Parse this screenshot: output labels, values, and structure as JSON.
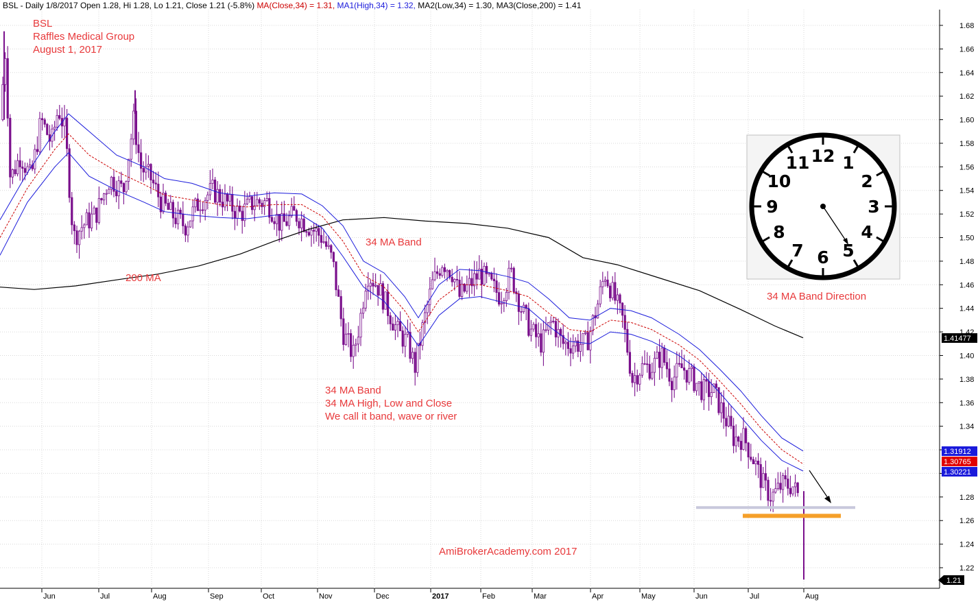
{
  "header": {
    "prefix": "BSL - Daily 1/8/2017 Open 1.28, Hi 1.28, Lo 1.21, Close 1.21 (-5.8%) ",
    "ma_close": "MA(Close,34) = 1.31,",
    "ma_high": " MA1(High,34) = 1.32,",
    "ma_low": " MA2(Low,34) = 1.30,",
    "ma_200": " MA3(Close,200) = 1.41"
  },
  "annotations": {
    "ticker": "BSL",
    "company": "Raffles Medical Group",
    "date": "August 1, 2017",
    "ma200": "200 MA",
    "band_top": "34 MA Band",
    "band_line1": "34 MA Band",
    "band_line2": "34 MA High, Low and Close",
    "band_line3": "We call it band, wave or river",
    "watermark": "AmiBrokerAcademy.com  2017",
    "clock_caption": "34 MA Band Direction"
  },
  "price_labels": {
    "ma200": "1.41477",
    "ma_high": "1.31912",
    "ma_close": "1.30765",
    "ma_low": "1.30221",
    "last": "1.21"
  },
  "clock": {
    "numbers": [
      "12",
      "1",
      "2",
      "3",
      "4",
      "5",
      "6",
      "7",
      "8",
      "9",
      "10",
      "11"
    ]
  },
  "colors": {
    "candle": "#7a0f8c",
    "ma_band": "#1a1adb",
    "ma_close": "#cc0000",
    "ma200": "#000000",
    "annotation": "#e8393b",
    "support_orange": "#f5a02a",
    "support_gray": "#c8c8dc"
  },
  "chart_data": {
    "type": "candlestick",
    "y_ticks": [
      "1.22",
      "1.24",
      "1.26",
      "1.28",
      "1.30",
      "1.32",
      "1.34",
      "1.36",
      "1.38",
      "1.40",
      "1.42",
      "1.44",
      "1.46",
      "1.48",
      "1.50",
      "1.52",
      "1.54",
      "1.56",
      "1.58",
      "1.60",
      "1.62",
      "1.64",
      "1.66",
      "1.68"
    ],
    "ylim": [
      1.205,
      1.695
    ],
    "x_ticks": [
      "Jun",
      "Jul",
      "Aug",
      "Sep",
      "Oct",
      "Nov",
      "Dec",
      "2017",
      "Feb",
      "Mar",
      "Apr",
      "May",
      "Jun",
      "Jul",
      "Aug"
    ],
    "ma200": [
      [
        0,
        1.458
      ],
      [
        50,
        1.456
      ],
      [
        110,
        1.459
      ],
      [
        180,
        1.465
      ],
      [
        230,
        1.469
      ],
      [
        290,
        1.476
      ],
      [
        350,
        1.486
      ],
      [
        400,
        1.497
      ],
      [
        450,
        1.507
      ],
      [
        500,
        1.515
      ],
      [
        560,
        1.517
      ],
      [
        620,
        1.514
      ],
      [
        680,
        1.512
      ],
      [
        740,
        1.508
      ],
      [
        800,
        1.5
      ],
      [
        850,
        1.483
      ],
      [
        900,
        1.477
      ],
      [
        960,
        1.466
      ],
      [
        1020,
        1.455
      ],
      [
        1080,
        1.439
      ],
      [
        1130,
        1.425
      ],
      [
        1171,
        1.415
      ]
    ],
    "ma_high": [
      [
        0,
        1.515
      ],
      [
        40,
        1.555
      ],
      [
        80,
        1.59
      ],
      [
        100,
        1.605
      ],
      [
        130,
        1.59
      ],
      [
        170,
        1.57
      ],
      [
        210,
        1.56
      ],
      [
        240,
        1.55
      ],
      [
        280,
        1.546
      ],
      [
        320,
        1.538
      ],
      [
        360,
        1.535
      ],
      [
        400,
        1.538
      ],
      [
        440,
        1.537
      ],
      [
        470,
        1.527
      ],
      [
        500,
        1.51
      ],
      [
        530,
        1.48
      ],
      [
        560,
        1.47
      ],
      [
        590,
        1.45
      ],
      [
        610,
        1.432
      ],
      [
        640,
        1.46
      ],
      [
        670,
        1.473
      ],
      [
        700,
        1.472
      ],
      [
        740,
        1.467
      ],
      [
        770,
        1.462
      ],
      [
        800,
        1.448
      ],
      [
        830,
        1.432
      ],
      [
        860,
        1.43
      ],
      [
        890,
        1.44
      ],
      [
        920,
        1.438
      ],
      [
        950,
        1.432
      ],
      [
        990,
        1.418
      ],
      [
        1020,
        1.405
      ],
      [
        1050,
        1.388
      ],
      [
        1080,
        1.37
      ],
      [
        1110,
        1.349
      ],
      [
        1140,
        1.33
      ],
      [
        1171,
        1.319
      ]
    ],
    "ma_close": [
      [
        0,
        1.5
      ],
      [
        40,
        1.542
      ],
      [
        80,
        1.575
      ],
      [
        100,
        1.588
      ],
      [
        130,
        1.57
      ],
      [
        170,
        1.556
      ],
      [
        210,
        1.545
      ],
      [
        240,
        1.536
      ],
      [
        280,
        1.532
      ],
      [
        320,
        1.528
      ],
      [
        360,
        1.526
      ],
      [
        400,
        1.528
      ],
      [
        440,
        1.528
      ],
      [
        470,
        1.518
      ],
      [
        500,
        1.497
      ],
      [
        530,
        1.468
      ],
      [
        560,
        1.458
      ],
      [
        590,
        1.438
      ],
      [
        610,
        1.42
      ],
      [
        640,
        1.447
      ],
      [
        670,
        1.46
      ],
      [
        700,
        1.46
      ],
      [
        740,
        1.455
      ],
      [
        770,
        1.45
      ],
      [
        800,
        1.436
      ],
      [
        830,
        1.422
      ],
      [
        860,
        1.42
      ],
      [
        890,
        1.43
      ],
      [
        920,
        1.428
      ],
      [
        950,
        1.422
      ],
      [
        990,
        1.409
      ],
      [
        1020,
        1.396
      ],
      [
        1050,
        1.378
      ],
      [
        1080,
        1.359
      ],
      [
        1110,
        1.338
      ],
      [
        1140,
        1.32
      ],
      [
        1171,
        1.308
      ]
    ],
    "ma_low": [
      [
        0,
        1.485
      ],
      [
        40,
        1.53
      ],
      [
        80,
        1.56
      ],
      [
        100,
        1.572
      ],
      [
        130,
        1.552
      ],
      [
        170,
        1.54
      ],
      [
        210,
        1.53
      ],
      [
        240,
        1.522
      ],
      [
        280,
        1.519
      ],
      [
        320,
        1.517
      ],
      [
        360,
        1.516
      ],
      [
        400,
        1.519
      ],
      [
        440,
        1.519
      ],
      [
        470,
        1.508
      ],
      [
        500,
        1.484
      ],
      [
        530,
        1.458
      ],
      [
        560,
        1.446
      ],
      [
        590,
        1.425
      ],
      [
        610,
        1.408
      ],
      [
        640,
        1.434
      ],
      [
        670,
        1.448
      ],
      [
        700,
        1.45
      ],
      [
        740,
        1.444
      ],
      [
        770,
        1.44
      ],
      [
        800,
        1.425
      ],
      [
        830,
        1.412
      ],
      [
        860,
        1.41
      ],
      [
        890,
        1.42
      ],
      [
        920,
        1.418
      ],
      [
        950,
        1.412
      ],
      [
        990,
        1.4
      ],
      [
        1020,
        1.387
      ],
      [
        1050,
        1.368
      ],
      [
        1080,
        1.348
      ],
      [
        1110,
        1.328
      ],
      [
        1140,
        1.311
      ],
      [
        1171,
        1.302
      ]
    ],
    "candles_keypoints": [
      [
        0,
        1.6
      ],
      [
        8,
        1.66
      ],
      [
        15,
        1.55
      ],
      [
        30,
        1.57
      ],
      [
        45,
        1.55
      ],
      [
        60,
        1.6
      ],
      [
        75,
        1.58
      ],
      [
        85,
        1.61
      ],
      [
        95,
        1.59
      ],
      [
        107,
        1.5
      ],
      [
        120,
        1.51
      ],
      [
        140,
        1.52
      ],
      [
        160,
        1.55
      ],
      [
        180,
        1.54
      ],
      [
        195,
        1.6
      ],
      [
        205,
        1.56
      ],
      [
        220,
        1.55
      ],
      [
        235,
        1.53
      ],
      [
        250,
        1.52
      ],
      [
        270,
        1.51
      ],
      [
        290,
        1.53
      ],
      [
        310,
        1.54
      ],
      [
        330,
        1.53
      ],
      [
        350,
        1.52
      ],
      [
        370,
        1.53
      ],
      [
        390,
        1.53
      ],
      [
        410,
        1.51
      ],
      [
        430,
        1.52
      ],
      [
        450,
        1.51
      ],
      [
        470,
        1.5
      ],
      [
        485,
        1.48
      ],
      [
        500,
        1.42
      ],
      [
        515,
        1.4
      ],
      [
        525,
        1.43
      ],
      [
        535,
        1.47
      ],
      [
        550,
        1.46
      ],
      [
        565,
        1.44
      ],
      [
        580,
        1.42
      ],
      [
        595,
        1.41
      ],
      [
        605,
        1.39
      ],
      [
        615,
        1.42
      ],
      [
        630,
        1.46
      ],
      [
        645,
        1.48
      ],
      [
        660,
        1.47
      ],
      [
        670,
        1.45
      ],
      [
        685,
        1.46
      ],
      [
        700,
        1.47
      ],
      [
        715,
        1.46
      ],
      [
        730,
        1.45
      ],
      [
        745,
        1.47
      ],
      [
        760,
        1.44
      ],
      [
        775,
        1.42
      ],
      [
        790,
        1.41
      ],
      [
        805,
        1.43
      ],
      [
        820,
        1.41
      ],
      [
        840,
        1.41
      ],
      [
        855,
        1.41
      ],
      [
        870,
        1.44
      ],
      [
        882,
        1.47
      ],
      [
        895,
        1.45
      ],
      [
        908,
        1.43
      ],
      [
        922,
        1.38
      ],
      [
        935,
        1.39
      ],
      [
        950,
        1.39
      ],
      [
        965,
        1.4
      ],
      [
        980,
        1.38
      ],
      [
        995,
        1.39
      ],
      [
        1010,
        1.38
      ],
      [
        1025,
        1.37
      ],
      [
        1040,
        1.37
      ],
      [
        1055,
        1.35
      ],
      [
        1070,
        1.33
      ],
      [
        1085,
        1.33
      ],
      [
        1100,
        1.31
      ],
      [
        1113,
        1.29
      ],
      [
        1125,
        1.28
      ],
      [
        1140,
        1.29
      ],
      [
        1155,
        1.29
      ],
      [
        1165,
        1.28
      ],
      [
        1171,
        1.21
      ]
    ],
    "support_lines": [
      {
        "y": 1.271,
        "x_start": 1015,
        "x_end": 1247,
        "color": "gray"
      },
      {
        "y": 1.264,
        "x_start": 1083,
        "x_end": 1226,
        "color": "orange"
      }
    ]
  }
}
